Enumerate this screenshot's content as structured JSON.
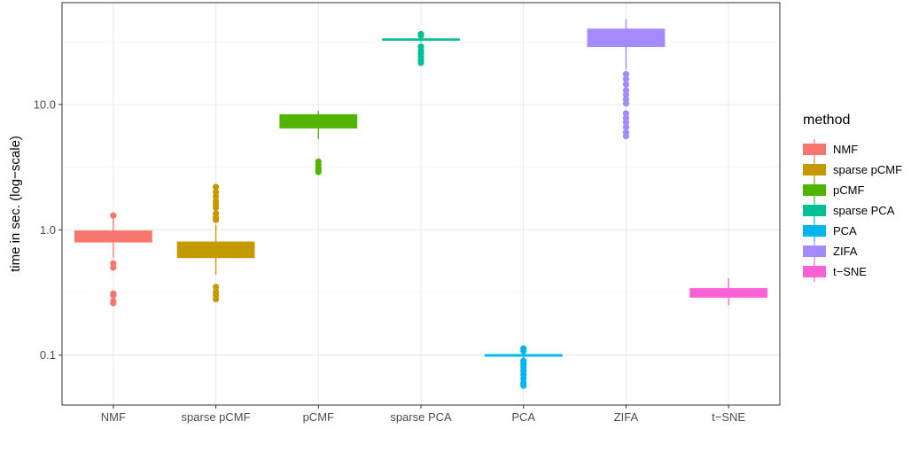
{
  "chart_data": {
    "type": "box",
    "ylabel": "time in sec. (log−scale)",
    "y_scale": "log10",
    "ylim": [
      0.04,
      65
    ],
    "y_ticks": [
      0.1,
      1.0,
      10.0
    ],
    "y_tick_labels": [
      "0.1",
      "1.0",
      "10.0"
    ],
    "grid": true,
    "legend": {
      "title": "method",
      "placement": "right"
    },
    "categories": [
      "NMF",
      "sparse pCMF",
      "pCMF",
      "sparse PCA",
      "PCA",
      "ZIFA",
      "t−SNE"
    ],
    "series": [
      {
        "name": "NMF",
        "color": "#F8766D",
        "whisker_low": 0.6,
        "q1": 0.8,
        "median": 0.88,
        "q3": 0.98,
        "whisker_high": 1.25,
        "outliers": [
          1.3,
          0.54,
          0.5,
          0.31,
          0.3,
          0.27,
          0.26
        ]
      },
      {
        "name": "sparse pCMF",
        "color": "#C49A00",
        "whisker_low": 0.44,
        "q1": 0.6,
        "median": 0.7,
        "q3": 0.8,
        "whisker_high": 1.1,
        "outliers": [
          2.2,
          2.0,
          1.85,
          1.7,
          1.6,
          1.5,
          1.35,
          1.25,
          1.2,
          0.35,
          0.32,
          0.3,
          0.28
        ]
      },
      {
        "name": "pCMF",
        "color": "#53B400",
        "whisker_low": 5.3,
        "q1": 6.5,
        "median": 7.3,
        "q3": 8.3,
        "whisker_high": 8.9,
        "outliers": [
          3.5,
          3.3,
          3.1,
          3.0,
          2.9
        ]
      },
      {
        "name": "sparse PCA",
        "color": "#00C094",
        "whisker_low": 31.5,
        "q1": 32.6,
        "median": 33.0,
        "q3": 33.4,
        "whisker_high": 34.5,
        "outliers": [
          36.5,
          35.5,
          29.0,
          27.0,
          25.5,
          24.0,
          22.5,
          21.5
        ]
      },
      {
        "name": "PCA",
        "color": "#00B6EB",
        "whisker_low": 0.095,
        "q1": 0.098,
        "median": 0.1,
        "q3": 0.101,
        "whisker_high": 0.104,
        "outliers": [
          0.113,
          0.108,
          0.09,
          0.085,
          0.08,
          0.075,
          0.07,
          0.065,
          0.06,
          0.057
        ]
      },
      {
        "name": "ZIFA",
        "color": "#A58AFF",
        "whisker_low": 19.0,
        "q1": 29.0,
        "median": 33.0,
        "q3": 40.0,
        "whisker_high": 48.0,
        "outliers": [
          17.5,
          16.0,
          14.5,
          13.0,
          12.0,
          11.0,
          10.2,
          8.5,
          7.8,
          7.2,
          6.6,
          6.0,
          5.6
        ]
      },
      {
        "name": "t−SNE",
        "color": "#FB61D7",
        "whisker_low": 0.25,
        "q1": 0.29,
        "median": 0.31,
        "q3": 0.34,
        "whisker_high": 0.41,
        "outliers": []
      }
    ]
  }
}
